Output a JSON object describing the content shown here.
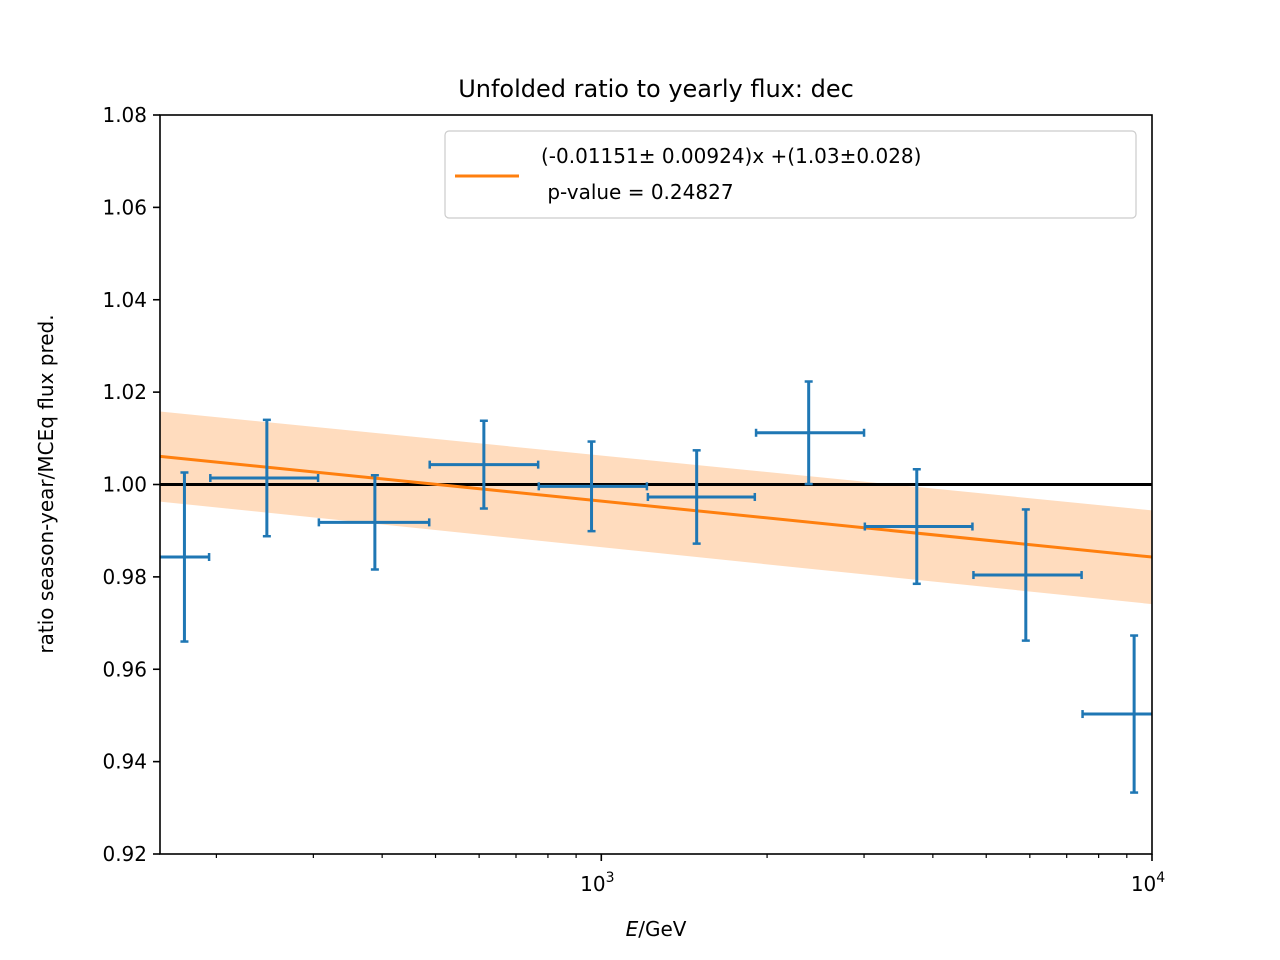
{
  "chart_data": {
    "type": "scatter",
    "title": "Unfolded ratio to yearly flux: dec",
    "xlabel": {
      "italic": "E",
      "rest": "/GeV"
    },
    "ylabel": "ratio season-year/MCEq flux pred.",
    "xscale": "log",
    "xlim": [
      158,
      10000
    ],
    "ylim": [
      0.92,
      1.08
    ],
    "yticks": [
      0.92,
      0.94,
      0.96,
      0.98,
      1.0,
      1.02,
      1.04,
      1.06,
      1.08
    ],
    "ytick_labels": [
      "0.92",
      "0.94",
      "0.96",
      "0.98",
      "1.00",
      "1.02",
      "1.04",
      "1.06",
      "1.08"
    ],
    "xticks_major": [
      {
        "value": 1000,
        "base": "10",
        "exp": "3"
      },
      {
        "value": 10000,
        "base": "10",
        "exp": "4"
      }
    ],
    "xticks_minor": [
      200,
      300,
      400,
      500,
      600,
      700,
      800,
      900,
      2000,
      3000,
      4000,
      5000,
      6000,
      7000,
      8000,
      9000
    ],
    "points": [
      {
        "x": 175,
        "x_low": 158,
        "x_high": 194,
        "y": 0.9843,
        "y_err": 0.0183
      },
      {
        "x": 247,
        "x_low": 195,
        "x_high": 306,
        "y": 1.0014,
        "y_err": 0.0126
      },
      {
        "x": 388,
        "x_low": 307,
        "x_high": 487,
        "y": 0.9918,
        "y_err": 0.0102
      },
      {
        "x": 612,
        "x_low": 488,
        "x_high": 768,
        "y": 1.0043,
        "y_err": 0.0095
      },
      {
        "x": 960,
        "x_low": 770,
        "x_high": 1210,
        "y": 0.9996,
        "y_err": 0.0097
      },
      {
        "x": 1490,
        "x_low": 1215,
        "x_high": 1900,
        "y": 0.9973,
        "y_err": 0.0101
      },
      {
        "x": 2380,
        "x_low": 1910,
        "x_high": 3000,
        "y": 1.0112,
        "y_err": 0.0111
      },
      {
        "x": 3740,
        "x_low": 3010,
        "x_high": 4720,
        "y": 0.9909,
        "y_err": 0.0124
      },
      {
        "x": 5900,
        "x_low": 4740,
        "x_high": 7450,
        "y": 0.9804,
        "y_err": 0.0142
      },
      {
        "x": 9280,
        "x_low": 7480,
        "x_high": 10000,
        "y": 0.9503,
        "y_err": 0.017
      }
    ],
    "reference_line": {
      "y": 1.0,
      "color": "#000000"
    },
    "fit_line": {
      "legend": [
        "(-0.01151± 0.00924)x +(1.03±0.028)",
        " p-value = 0.24827"
      ],
      "x": [
        158,
        10000
      ],
      "y": [
        1.0061,
        0.9843
      ],
      "band_low": [
        0.9963,
        0.9741
      ],
      "band_high": [
        1.0158,
        0.9944
      ],
      "color": "#ff7f0e",
      "band_color": "#ffdcbe"
    },
    "legend_position": "top-right",
    "series_color": "#1f77b4",
    "grid": false
  }
}
